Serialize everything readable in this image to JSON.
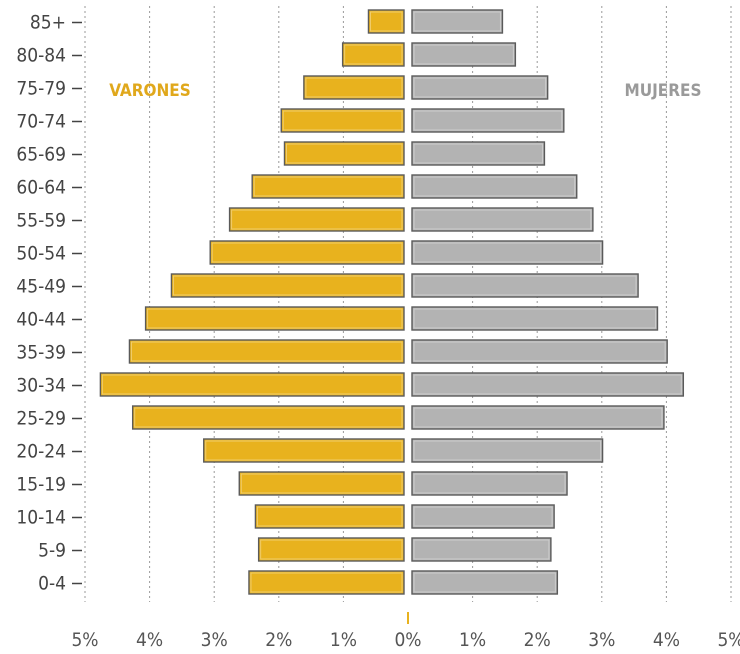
{
  "chart_data": {
    "type": "bar",
    "orientation": "horizontal",
    "layout": "population-pyramid",
    "categories": [
      "85+",
      "80-84",
      "75-79",
      "70-74",
      "65-69",
      "60-64",
      "55-59",
      "50-54",
      "45-49",
      "40-44",
      "35-39",
      "30-34",
      "25-29",
      "20-24",
      "15-19",
      "10-14",
      "5-9",
      "0-4"
    ],
    "series": [
      {
        "name": "VARONES",
        "side": "left",
        "color": "#E8B21E",
        "values": [
          0.55,
          0.95,
          1.55,
          1.9,
          1.85,
          2.35,
          2.7,
          3.0,
          3.6,
          4.0,
          4.25,
          4.7,
          4.2,
          3.1,
          2.55,
          2.3,
          2.25,
          2.4
        ]
      },
      {
        "name": "MUJERES",
        "side": "right",
        "color": "#B3B3B3",
        "values": [
          1.4,
          1.6,
          2.1,
          2.35,
          2.05,
          2.55,
          2.8,
          2.95,
          3.5,
          3.8,
          3.95,
          4.2,
          3.9,
          2.95,
          2.4,
          2.2,
          2.15,
          2.25
        ]
      }
    ],
    "xlim": [
      -5,
      5
    ],
    "x_ticks": [
      "5%",
      "4%",
      "3%",
      "2%",
      "1%",
      "0%",
      "1%",
      "2%",
      "3%",
      "4%",
      "5%"
    ],
    "grid": "vertical dashed",
    "legend": {
      "placement": "top-inside",
      "entries": [
        "VARONES",
        "MUJERES"
      ]
    },
    "title": "",
    "xlabel": "",
    "ylabel": ""
  },
  "colors": {
    "male": "#E8B21E",
    "female": "#B3B3B3",
    "male_label": "#E0A81C",
    "female_label": "#9A9A9A",
    "grid": "#9a9a9a",
    "axis_text": "#444444"
  }
}
